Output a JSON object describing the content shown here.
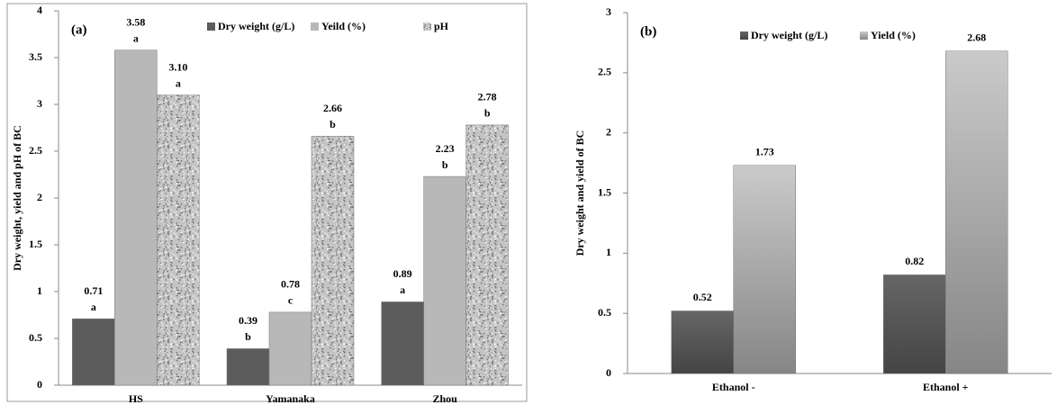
{
  "chart_data": [
    {
      "type": "bar",
      "panel_label": "(a)",
      "ylabel": "Dry weight, yield and pH of BC",
      "categories": [
        "HS",
        "Yamanaka",
        "Zhou"
      ],
      "series": [
        {
          "name": "Dry weight (g/L)",
          "color": "#5c5c5c",
          "values": [
            0.71,
            0.39,
            0.89
          ],
          "letters": [
            "a",
            "b",
            "a"
          ]
        },
        {
          "name": "Yeild (%)",
          "color": "#b8b8b8",
          "values": [
            3.58,
            0.78,
            2.23
          ],
          "letters": [
            "a",
            "c",
            "b"
          ]
        },
        {
          "name": "pH",
          "color": "#c4c4c4",
          "pattern": "granite",
          "values": [
            3.1,
            2.66,
            2.78
          ],
          "value_labels": [
            "3.10",
            "2.66",
            "2.78"
          ],
          "letters": [
            "a",
            "b",
            "b"
          ]
        }
      ],
      "ylim": [
        0,
        4
      ],
      "yticks": [
        0,
        0.5,
        1,
        1.5,
        2,
        2.5,
        3,
        3.5,
        4
      ]
    },
    {
      "type": "bar",
      "panel_label": "(b)",
      "ylabel": "Dry weight and yield of BC",
      "categories": [
        "Ethanol -",
        "Ethanol +"
      ],
      "series": [
        {
          "name": "Dry weight (g/L)",
          "color": "#555555",
          "gradient": true,
          "values": [
            0.52,
            0.82
          ]
        },
        {
          "name": "Yield (%)",
          "color": "#a8a8a8",
          "gradient": true,
          "values": [
            1.73,
            2.68
          ]
        }
      ],
      "ylim": [
        0,
        3
      ],
      "yticks": [
        0,
        0.5,
        1,
        1.5,
        2,
        2.5,
        3
      ]
    }
  ]
}
